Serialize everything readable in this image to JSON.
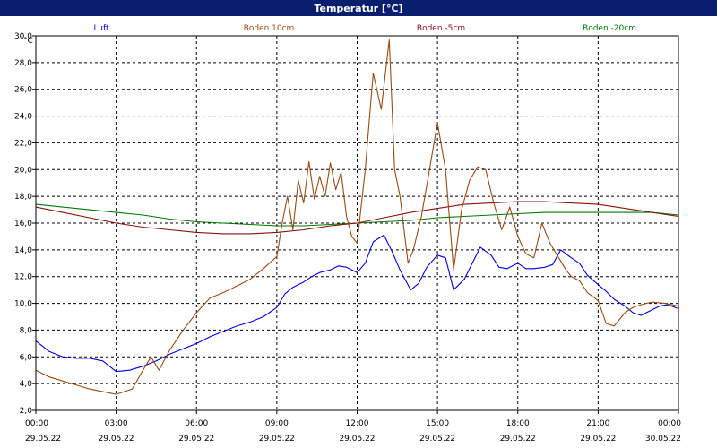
{
  "title": "Temperatur [°C]",
  "chart_data": {
    "type": "line",
    "ylabel": "°C",
    "ylim": [
      2.0,
      30.0
    ],
    "yticks": [
      "2,0",
      "4,0",
      "6,0",
      "8,0",
      "10,0",
      "12,0",
      "14,0",
      "16,0",
      "18,0",
      "20,0",
      "22,0",
      "24,0",
      "26,0",
      "28,0",
      "30,0"
    ],
    "xlim": [
      0,
      24
    ],
    "xticks": [
      {
        "time": "00:00",
        "date": "29.05.22"
      },
      {
        "time": "03:00",
        "date": "29.05.22"
      },
      {
        "time": "06:00",
        "date": "29.05.22"
      },
      {
        "time": "09:00",
        "date": "29.05.22"
      },
      {
        "time": "12:00",
        "date": "29.05.22"
      },
      {
        "time": "15:00",
        "date": "29.05.22"
      },
      {
        "time": "18:00",
        "date": "29.05.22"
      },
      {
        "time": "21:00",
        "date": "29.05.22"
      },
      {
        "time": "00:00",
        "date": "30.05.22"
      }
    ],
    "grid": true,
    "legend_position": "top",
    "series": [
      {
        "name": "Luft",
        "color": "#0000dd",
        "x": [
          0,
          0.5,
          1,
          1.5,
          2,
          2.5,
          3,
          3.5,
          4,
          4.5,
          5,
          5.5,
          6,
          6.5,
          7,
          7.5,
          8,
          8.5,
          9,
          9.3,
          9.6,
          10,
          10.3,
          10.6,
          11,
          11.3,
          11.6,
          12,
          12.3,
          12.6,
          13,
          13.3,
          13.6,
          14,
          14.3,
          14.6,
          15,
          15.3,
          15.6,
          16,
          16.3,
          16.6,
          17,
          17.3,
          17.6,
          18,
          18.3,
          18.6,
          19,
          19.3,
          19.6,
          20,
          20.3,
          20.6,
          21,
          21.3,
          21.6,
          22,
          22.3,
          22.6,
          23,
          23.3,
          23.6,
          24
        ],
        "y": [
          7.2,
          6.4,
          6.0,
          5.9,
          5.9,
          5.7,
          4.9,
          5.0,
          5.3,
          5.7,
          6.2,
          6.6,
          7.0,
          7.5,
          7.9,
          8.3,
          8.6,
          9.0,
          9.7,
          10.7,
          11.2,
          11.6,
          12.0,
          12.3,
          12.5,
          12.8,
          12.7,
          12.3,
          13.0,
          14.6,
          15.1,
          13.9,
          12.5,
          11.0,
          11.5,
          12.7,
          13.6,
          13.4,
          11.0,
          11.8,
          13.0,
          14.2,
          13.6,
          12.7,
          12.6,
          13.0,
          12.6,
          12.6,
          12.7,
          12.9,
          14.0,
          13.4,
          13.0,
          12.1,
          11.4,
          10.9,
          10.3,
          9.8,
          9.3,
          9.1,
          9.5,
          9.8,
          9.9,
          9.6
        ]
      },
      {
        "name": "Boden 10cm",
        "color": "#9a4a10",
        "x": [
          0,
          0.5,
          1,
          1.5,
          2,
          2.5,
          3,
          3.3,
          3.6,
          4,
          4.3,
          4.6,
          5,
          5.5,
          6,
          6.5,
          7,
          7.5,
          8,
          8.5,
          9,
          9.2,
          9.4,
          9.6,
          9.8,
          10,
          10.2,
          10.4,
          10.6,
          10.8,
          11,
          11.2,
          11.4,
          11.6,
          11.8,
          12,
          12.3,
          12.6,
          12.9,
          13.2,
          13.4,
          13.6,
          13.9,
          14.1,
          14.4,
          14.7,
          15,
          15.3,
          15.6,
          15.9,
          16.2,
          16.5,
          16.8,
          17.1,
          17.4,
          17.7,
          18,
          18.3,
          18.6,
          18.9,
          19.2,
          19.5,
          19.8,
          20,
          20.3,
          20.6,
          21,
          21.3,
          21.6,
          22,
          22.3,
          22.6,
          23,
          23.5,
          24
        ],
        "y": [
          5.0,
          4.5,
          4.2,
          3.9,
          3.6,
          3.4,
          3.2,
          3.4,
          3.6,
          5.0,
          6.0,
          5.0,
          6.5,
          8.0,
          9.3,
          10.4,
          10.8,
          11.3,
          11.8,
          12.6,
          13.5,
          16.0,
          18.0,
          15.5,
          19.2,
          17.5,
          20.6,
          17.8,
          19.5,
          18.0,
          20.5,
          18.5,
          19.8,
          16.5,
          15.0,
          14.5,
          20.0,
          27.2,
          24.5,
          29.7,
          20.0,
          18.0,
          13.0,
          14.0,
          16.5,
          20.0,
          23.5,
          20.0,
          12.5,
          17.0,
          19.2,
          20.2,
          20.0,
          17.5,
          15.5,
          17.2,
          15.0,
          13.7,
          13.4,
          16.0,
          14.5,
          13.5,
          12.5,
          12.0,
          11.7,
          10.8,
          10.2,
          8.5,
          8.3,
          9.3,
          9.7,
          9.9,
          10.1,
          10.0,
          9.8
        ]
      },
      {
        "name": "Boden -5cm",
        "color": "#8b1010",
        "x": [
          0,
          1,
          2,
          3,
          4,
          5,
          6,
          7,
          8,
          9,
          10,
          11,
          12,
          13,
          14,
          15,
          16,
          17,
          18,
          19,
          20,
          21,
          22,
          23,
          24
        ],
        "y": [
          17.2,
          16.8,
          16.4,
          16.0,
          15.7,
          15.5,
          15.3,
          15.2,
          15.2,
          15.3,
          15.5,
          15.8,
          16.0,
          16.4,
          16.8,
          17.1,
          17.4,
          17.5,
          17.6,
          17.6,
          17.5,
          17.4,
          17.1,
          16.8,
          16.5
        ]
      },
      {
        "name": "Boden -20cm",
        "color": "#007a00",
        "x": [
          0,
          1,
          2,
          3,
          4,
          5,
          6,
          7,
          8,
          9,
          10,
          11,
          12,
          13,
          14,
          15,
          16,
          17,
          18,
          19,
          20,
          21,
          22,
          23,
          24
        ],
        "y": [
          17.4,
          17.2,
          17.0,
          16.8,
          16.6,
          16.3,
          16.1,
          16.0,
          15.9,
          15.8,
          15.8,
          15.9,
          16.0,
          16.1,
          16.2,
          16.4,
          16.5,
          16.6,
          16.7,
          16.8,
          16.8,
          16.8,
          16.8,
          16.8,
          16.6
        ]
      }
    ]
  }
}
